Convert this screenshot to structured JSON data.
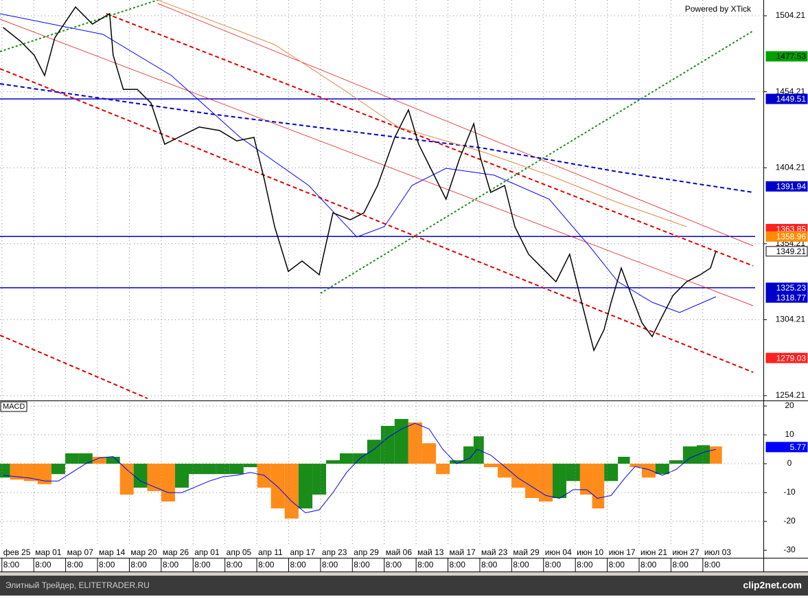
{
  "header_text": "Powered by XTick",
  "footer": {
    "left": "Элитный Трейдер, ELITETRADER.RU",
    "right": "clip2net.com"
  },
  "chart_data": [
    {
      "type": "line",
      "xlim": [
        -0.06,
        23.9
      ],
      "ylim": [
        1251.5,
        1514.6
      ],
      "yticks": [
        1504.21,
        1454.21,
        1404.21,
        1354.21,
        1304.21,
        1254.21
      ],
      "grid": true,
      "series": [
        {
          "color": "#000000",
          "x": [
            0.04,
            0.58,
            1.01,
            1.34,
            1.66,
            2.31,
            2.84,
            3.38,
            3.49,
            3.81,
            4.25,
            4.68,
            5.11,
            5.54,
            6.19,
            6.83,
            7.37,
            7.91,
            8.23,
            8.56,
            8.99,
            9.42,
            9.96,
            10.39,
            10.93,
            11.36,
            11.79,
            12.33,
            12.76,
            13.08,
            13.51,
            13.94,
            14.37,
            14.81,
            15.02,
            15.34,
            15.78,
            16.1,
            16.53,
            16.96,
            17.39,
            17.82,
            18.25,
            18.58,
            18.9,
            19.12,
            19.44,
            19.76,
            20.09,
            20.41,
            20.73,
            21.06,
            21.49,
            21.92,
            22.24,
            22.41
          ],
          "values": [
            1496.5,
            1487.5,
            1478.4,
            1464.9,
            1489.7,
            1510,
            1498.8,
            1505.6,
            1478.4,
            1455.8,
            1455.8,
            1446.8,
            1419.7,
            1424.2,
            1431,
            1428.7,
            1421.9,
            1424.2,
            1397.1,
            1365.4,
            1336,
            1342.8,
            1333.8,
            1374.5,
            1370,
            1374.5,
            1392.5,
            1424.2,
            1442.3,
            1419.7,
            1401.6,
            1383.5,
            1410.6,
            1433.2,
            1410.6,
            1388,
            1392.5,
            1365.4,
            1347.3,
            1338.2,
            1329.2,
            1347.3,
            1311.2,
            1284,
            1297.6,
            1315.7,
            1338.2,
            1320.1,
            1302.1,
            1293.1,
            1306.6,
            1320.1,
            1329.2,
            1333.8,
            1338.2,
            1349.21
          ]
        }
      ],
      "lines": [
        {
          "color": "#e00000",
          "style": "dashed",
          "width": 2,
          "x": [
            3.28,
            23.58
          ],
          "values": [
            1505.57,
            1339.65
          ]
        },
        {
          "color": "#e00000",
          "style": "dashed",
          "width": 2,
          "x": [
            -0.06,
            23.58
          ],
          "values": [
            1469.4,
            1269.58
          ]
        },
        {
          "color": "#e00000",
          "style": "dashed",
          "width": 2,
          "x": [
            -0.06,
            4.57
          ],
          "values": [
            1294.0,
            1252.4
          ]
        },
        {
          "color": "#e00000",
          "style": "solid",
          "width": 0.7,
          "x": [
            -0.06,
            23.58
          ],
          "values": [
            1501.95,
            1313.44
          ]
        },
        {
          "color": "#e00000",
          "style": "solid",
          "width": 0.7,
          "x": [
            4.89,
            23.58
          ],
          "values": [
            1512.35,
            1352.77
          ]
        },
        {
          "color": "#1a8c1a",
          "style": "dotted",
          "width": 2,
          "x": [
            -0.06,
            4.89
          ],
          "values": [
            1480.7,
            1514.6
          ]
        },
        {
          "color": "#1a8c1a",
          "style": "dotted",
          "width": 2,
          "x": [
            10.0,
            23.58
          ],
          "values": [
            1321.6,
            1494.3
          ]
        },
        {
          "color": "#0000cc",
          "style": "dashed",
          "width": 2,
          "x": [
            -0.06,
            6.4,
            10.71,
            15.02,
            19.33,
            23.58
          ],
          "values": [
            1459.45,
            1440.01,
            1428.71,
            1417.41,
            1401.59,
            1388.03
          ]
        },
        {
          "color": "#0000ff",
          "style": "solid",
          "width": 1,
          "x": [
            -0.06,
            3.17,
            5.32,
            7.48,
            9.63,
            11.14,
            12.0,
            12.87,
            13.94,
            15.45,
            17.18,
            18.47,
            19.33,
            20.41,
            21.27,
            22.41
          ],
          "values": [
            1505.57,
            1492.0,
            1464.88,
            1424.2,
            1392.55,
            1358.65,
            1365.4,
            1392.55,
            1403.85,
            1399.33,
            1383.5,
            1351.9,
            1329.3,
            1315.7,
            1308.9,
            1319.3
          ]
        },
        {
          "color": "#e08a40",
          "style": "solid",
          "width": 1,
          "x": [
            4.89,
            8.56,
            10.71,
            12.44,
            15.02,
            17.18,
            19.33,
            21.49
          ],
          "values": [
            1514.6,
            1485.2,
            1455.8,
            1431.0,
            1415.2,
            1399.3,
            1381.3,
            1365.4
          ]
        }
      ],
      "hlines": [
        {
          "value": 1449.51,
          "color": "#0000cc"
        },
        {
          "value": 1358.96,
          "color": "#0000cc"
        },
        {
          "value": 1325.23,
          "color": "#0000cc"
        }
      ],
      "markers": [
        {
          "value": 1477.53,
          "bg": "#00a000",
          "fg": "#000000"
        },
        {
          "value": 1449.51,
          "bg": "#0000cc",
          "fg": "#ffffff"
        },
        {
          "value": 1391.94,
          "bg": "#0000cc",
          "fg": "#ffffff"
        },
        {
          "value": 1363.85,
          "bg": "#ff2020",
          "fg": "#ffffff"
        },
        {
          "value": 1358.96,
          "bg": "#ff8c00",
          "fg": "#ffffff"
        },
        {
          "value": 1349.21,
          "bg": "#ffffff",
          "fg": "#000000"
        },
        {
          "value": 1325.23,
          "bg": "#0000cc",
          "fg": "#ffffff"
        },
        {
          "value": 1318.77,
          "bg": "#0000cc",
          "fg": "#ffffff"
        },
        {
          "value": 1279.03,
          "bg": "#ff2020",
          "fg": "#ffffff"
        }
      ]
    },
    {
      "type": "bar",
      "title": "MACD",
      "xlim": [
        -0.06,
        23.9
      ],
      "ylim": [
        -32.6,
        21.2
      ],
      "yticks": [
        20,
        10,
        0,
        -10,
        -20,
        -30
      ],
      "grid": true,
      "categories": [
        "фев 25",
        "мар 01",
        "мар 07",
        "мар 14",
        "мар 20",
        "мар 26",
        "апр 01",
        "апр 05",
        "апр 11",
        "апр 17",
        "апр 23",
        "апр 29",
        "май 06",
        "май 13",
        "май 17",
        "май 23",
        "май 29",
        "июн 04",
        "июн 10",
        "июн 17",
        "июн 21",
        "июн 27",
        "июл 03"
      ],
      "category_times": [
        "8:00",
        "8:00",
        "8:00",
        "8:00",
        "8:00",
        "8:00",
        "8:00",
        "8:00",
        "8:00",
        "8:00",
        "8:00",
        "8:00",
        "8:00",
        "8:00",
        "8:00",
        "8:00",
        "8:00",
        "8:00",
        "8:00",
        "8:00",
        "8:00",
        "8:00",
        "8:00"
      ],
      "up_color": "#1a8c1a",
      "down_color": "#ff8c1a",
      "x": [
        0.04,
        0.47,
        0.91,
        1.34,
        1.77,
        2.2,
        2.63,
        3.06,
        3.49,
        3.92,
        4.35,
        4.78,
        5.22,
        5.65,
        6.08,
        6.51,
        6.94,
        7.37,
        7.8,
        8.23,
        8.66,
        9.09,
        9.53,
        9.96,
        10.39,
        10.82,
        11.25,
        11.68,
        12.11,
        12.54,
        12.97,
        13.41,
        13.84,
        14.27,
        14.7,
        14.91,
        15.34,
        15.78,
        16.21,
        16.64,
        17.07,
        17.5,
        17.93,
        18.36,
        18.69,
        19.12,
        19.55,
        19.87,
        20.3,
        20.73,
        21.16,
        21.59,
        22.03,
        22.41
      ],
      "values": [
        -4.8,
        -5.5,
        -6,
        -7.1,
        -3.6,
        3.6,
        3.6,
        2.4,
        2.4,
        -10.7,
        -8.3,
        -9.5,
        -13.1,
        -8.3,
        -3.6,
        -3.6,
        -3.6,
        -3.6,
        -1.2,
        -8.3,
        -15.5,
        -19,
        -15.5,
        -10.7,
        1.2,
        3.6,
        3.6,
        8.3,
        13.1,
        15.5,
        14.3,
        7.1,
        -3.6,
        1.2,
        6,
        9.5,
        -1.2,
        -4.8,
        -8.3,
        -11.9,
        -13.1,
        -11.9,
        -6,
        -10.7,
        -15.5,
        -6,
        2.4,
        -1.2,
        -4.8,
        -3.6,
        1.2,
        6,
        6.4,
        6
      ],
      "signal": {
        "color": "#0000ff",
        "values": [
          -4,
          -4.5,
          -5,
          -6,
          -6,
          -3,
          0,
          2,
          2.5,
          -2,
          -6,
          -8,
          -10,
          -10,
          -8,
          -6,
          -4.5,
          -4,
          -3,
          -4,
          -8,
          -13,
          -17,
          -16,
          -10,
          -3,
          2,
          5,
          9,
          12,
          14,
          12,
          5,
          0,
          2,
          5,
          3,
          -1,
          -5,
          -8,
          -11,
          -12,
          -9,
          -9,
          -12,
          -11,
          -5,
          -1,
          -2,
          -4,
          -2,
          2,
          4,
          5
        ]
      },
      "markers": [
        {
          "value": 5.77,
          "bg": "#0000ff",
          "fg": "#ffffff"
        }
      ]
    }
  ]
}
